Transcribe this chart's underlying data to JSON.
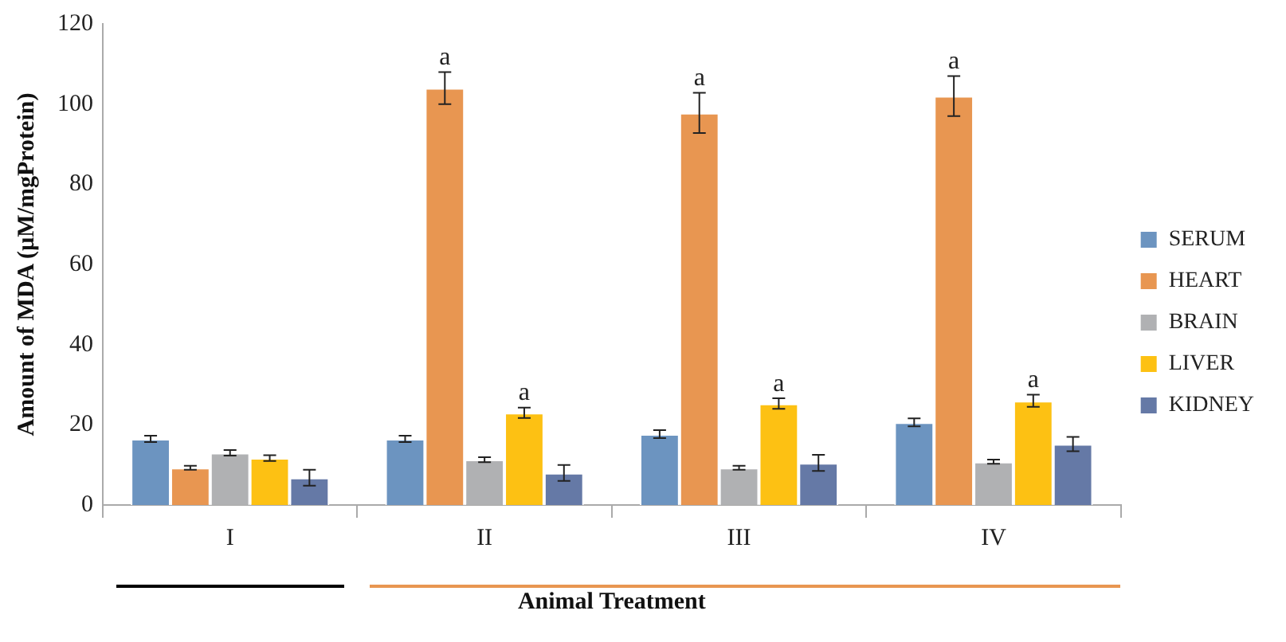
{
  "chart_data": {
    "type": "bar",
    "xlabel": "Animal Treatment",
    "ylabel": "Amount of MDA (µM/mgProtein)",
    "categories": [
      "I",
      "II",
      "III",
      "IV"
    ],
    "series": [
      {
        "name": "SERUM",
        "color": "#6c94c0",
        "values": [
          16.5,
          16.5,
          17.7,
          20.6
        ],
        "errors": [
          0.8,
          0.8,
          1,
          1
        ]
      },
      {
        "name": "HEART",
        "color": "#e89651",
        "values": [
          9.3,
          104,
          97.8,
          102
        ],
        "errors": [
          0.5,
          4,
          5,
          5
        ]
      },
      {
        "name": "BRAIN",
        "color": "#b0b1b3",
        "values": [
          13,
          11.3,
          9.3,
          10.8
        ],
        "errors": [
          0.7,
          0.6,
          0.5,
          0.5
        ]
      },
      {
        "name": "LIVER",
        "color": "#fdc113",
        "values": [
          11.7,
          23,
          25.3,
          26
        ],
        "errors": [
          0.7,
          1.3,
          1.3,
          1.5
        ]
      },
      {
        "name": "KIDNEY",
        "color": "#6579a6",
        "values": [
          6.8,
          8,
          10.5,
          15.2
        ],
        "errors": [
          2,
          2,
          2,
          1.8
        ]
      }
    ],
    "annotations": [
      "a",
      "a",
      "a",
      "a",
      "a",
      "a"
    ],
    "ylim": [
      0,
      120
    ],
    "yticks": [
      0,
      20,
      40,
      60,
      80,
      100,
      120
    ],
    "grid": false,
    "legend": "right"
  }
}
